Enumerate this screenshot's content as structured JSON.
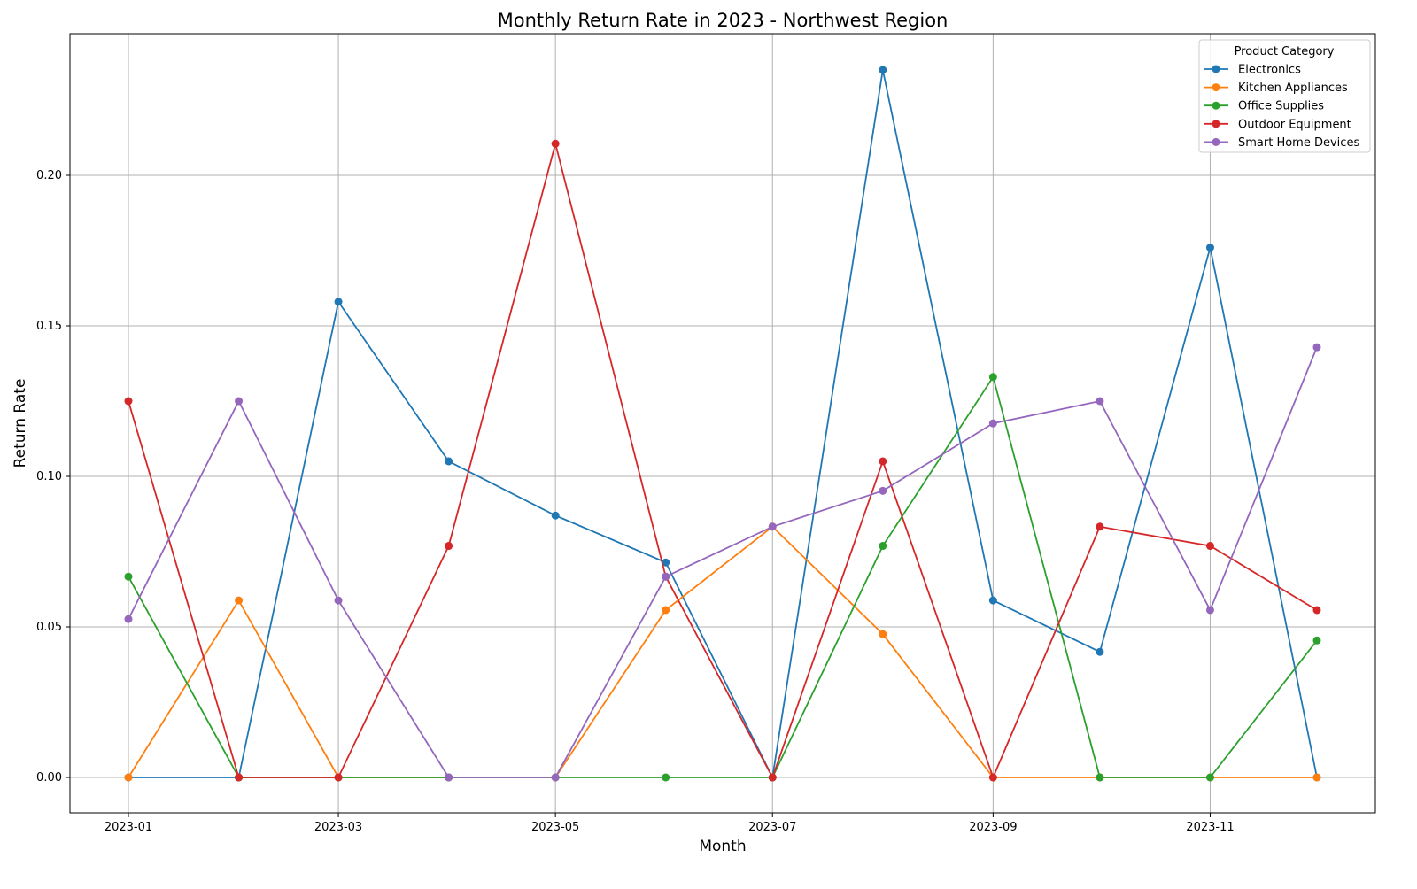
{
  "chart_data": {
    "type": "line",
    "title": "Monthly Return Rate in 2023 - Northwest Region",
    "xlabel": "Month",
    "ylabel": "Return Rate",
    "x": [
      "2023-01",
      "2023-02",
      "2023-03",
      "2023-04",
      "2023-05",
      "2023-06",
      "2023-07",
      "2023-08",
      "2023-09",
      "2023-10",
      "2023-11",
      "2023-12"
    ],
    "x_tick_labels": [
      "2023-01",
      "2023-03",
      "2023-05",
      "2023-07",
      "2023-09",
      "2023-11"
    ],
    "y_ticks": [
      0.0,
      0.05,
      0.1,
      0.15,
      0.2
    ],
    "y_tick_labels": [
      "0.00",
      "0.05",
      "0.10",
      "0.15",
      "0.20"
    ],
    "ylim": [
      -0.012,
      0.247
    ],
    "grid": true,
    "legend_title": "Product Category",
    "legend_position": "upper right",
    "series": [
      {
        "name": "Electronics",
        "color": "#1f77b4",
        "values": [
          0,
          0,
          0.158,
          0.105,
          0.087,
          0.0714,
          0,
          0.235,
          0.0588,
          0.0417,
          0.176,
          0
        ]
      },
      {
        "name": "Kitchen Appliances",
        "color": "#ff7f0e",
        "values": [
          0,
          0.0588,
          0,
          0,
          0,
          0.0556,
          0.0833,
          0.0476,
          0,
          0,
          0,
          0
        ]
      },
      {
        "name": "Office Supplies",
        "color": "#2ca02c",
        "values": [
          0.0667,
          0,
          0,
          0,
          0,
          0,
          0,
          0.0769,
          0.133,
          0,
          0,
          0.0455
        ]
      },
      {
        "name": "Outdoor Equipment",
        "color": "#d62728",
        "values": [
          0.125,
          0,
          0,
          0.0769,
          0.2105,
          0.0667,
          0,
          0.105,
          0,
          0.0833,
          0.0769,
          0.0556
        ]
      },
      {
        "name": "Smart Home Devices",
        "color": "#9467bd",
        "values": [
          0.0526,
          0.125,
          0.0588,
          0,
          0,
          0.0667,
          0.0833,
          0.0952,
          0.1176,
          0.125,
          0.0556,
          0.1429
        ]
      }
    ]
  }
}
